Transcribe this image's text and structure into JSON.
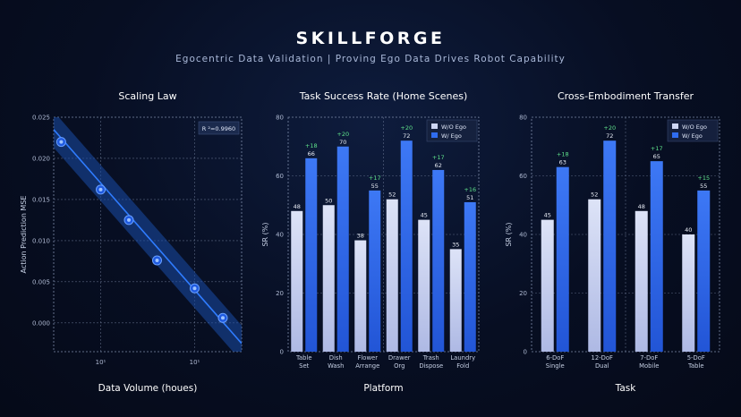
{
  "header": {
    "title": "SKILLFORGE",
    "subtitle": "Egocentric Data Validation | Proving Ego Data Drives Robot Capability"
  },
  "colors": {
    "wo": "#cdd6f4",
    "w": "#2f6cf0",
    "delta": "#5ee08a",
    "grid": "#7c8aa8",
    "band": "#1a4da8",
    "line": "#2f7cff"
  },
  "chart_data": [
    {
      "type": "scatter",
      "title": "Scaling Law",
      "xlabel": "Data Volume  (houes)",
      "ylabel": "Action Prediction MSE",
      "annotation": "R ²=0.9960",
      "ylim": [
        -0.0035,
        0.025
      ],
      "yticks": [
        0.0,
        0.005,
        0.01,
        0.015,
        0.02,
        0.025
      ],
      "ytick_labels": [
        "0.000",
        "0.005",
        "0.010",
        "0.015",
        "0.020",
        "0.025"
      ],
      "xlim": [
        0,
        10
      ],
      "xticks": [
        2.5,
        7.5
      ],
      "xtick_labels": [
        "10¹",
        "10¹"
      ],
      "x": [
        0.4,
        2.5,
        4.0,
        5.5,
        7.5,
        9.0
      ],
      "y": [
        0.022,
        0.0162,
        0.0125,
        0.0076,
        0.0042,
        0.0006
      ],
      "fit": {
        "x": [
          0,
          10
        ],
        "y": [
          0.0235,
          -0.0025
        ]
      },
      "band": 0.0022
    },
    {
      "type": "bar",
      "title": "Task Success Rate (Home Scenes)",
      "xlabel": "Platform",
      "ylabel": "SR (%)",
      "ylim": [
        0,
        80
      ],
      "yticks": [
        0,
        20,
        40,
        60,
        80
      ],
      "legend_placement": "top-right",
      "categories": [
        [
          "Table",
          "Set"
        ],
        [
          "Dish",
          "Wash"
        ],
        [
          "Flower",
          "Arrange"
        ],
        [
          "Drawer",
          "Org"
        ],
        [
          "Trash",
          "Dispose"
        ],
        [
          "Laundry",
          "Fold"
        ]
      ],
      "series": [
        {
          "name": "W/O Ego",
          "values": [
            48,
            50,
            38,
            52,
            45,
            35
          ]
        },
        {
          "name": "W/ Ego",
          "values": [
            66,
            70,
            55,
            72,
            62,
            51
          ]
        }
      ],
      "deltas": [
        "+18",
        "+20",
        "+17",
        "+20",
        "+17",
        "+16"
      ]
    },
    {
      "type": "bar",
      "title": "Cross-Embodiment Transfer",
      "xlabel": "Task",
      "ylabel": "SR (%)",
      "ylim": [
        0,
        80
      ],
      "yticks": [
        0,
        20,
        40,
        60,
        80
      ],
      "legend_placement": "top-right",
      "categories": [
        [
          "6-DoF",
          "Single"
        ],
        [
          "12-DoF",
          "Dual"
        ],
        [
          "7-DoF",
          "Mobile"
        ],
        [
          "5-DoF",
          "Table"
        ]
      ],
      "series": [
        {
          "name": "W/O Ego",
          "values": [
            45,
            52,
            48,
            40
          ]
        },
        {
          "name": "W/ Ego",
          "values": [
            63,
            72,
            65,
            55
          ]
        }
      ],
      "deltas": [
        "+18",
        "+20",
        "+17",
        "+15"
      ]
    }
  ]
}
